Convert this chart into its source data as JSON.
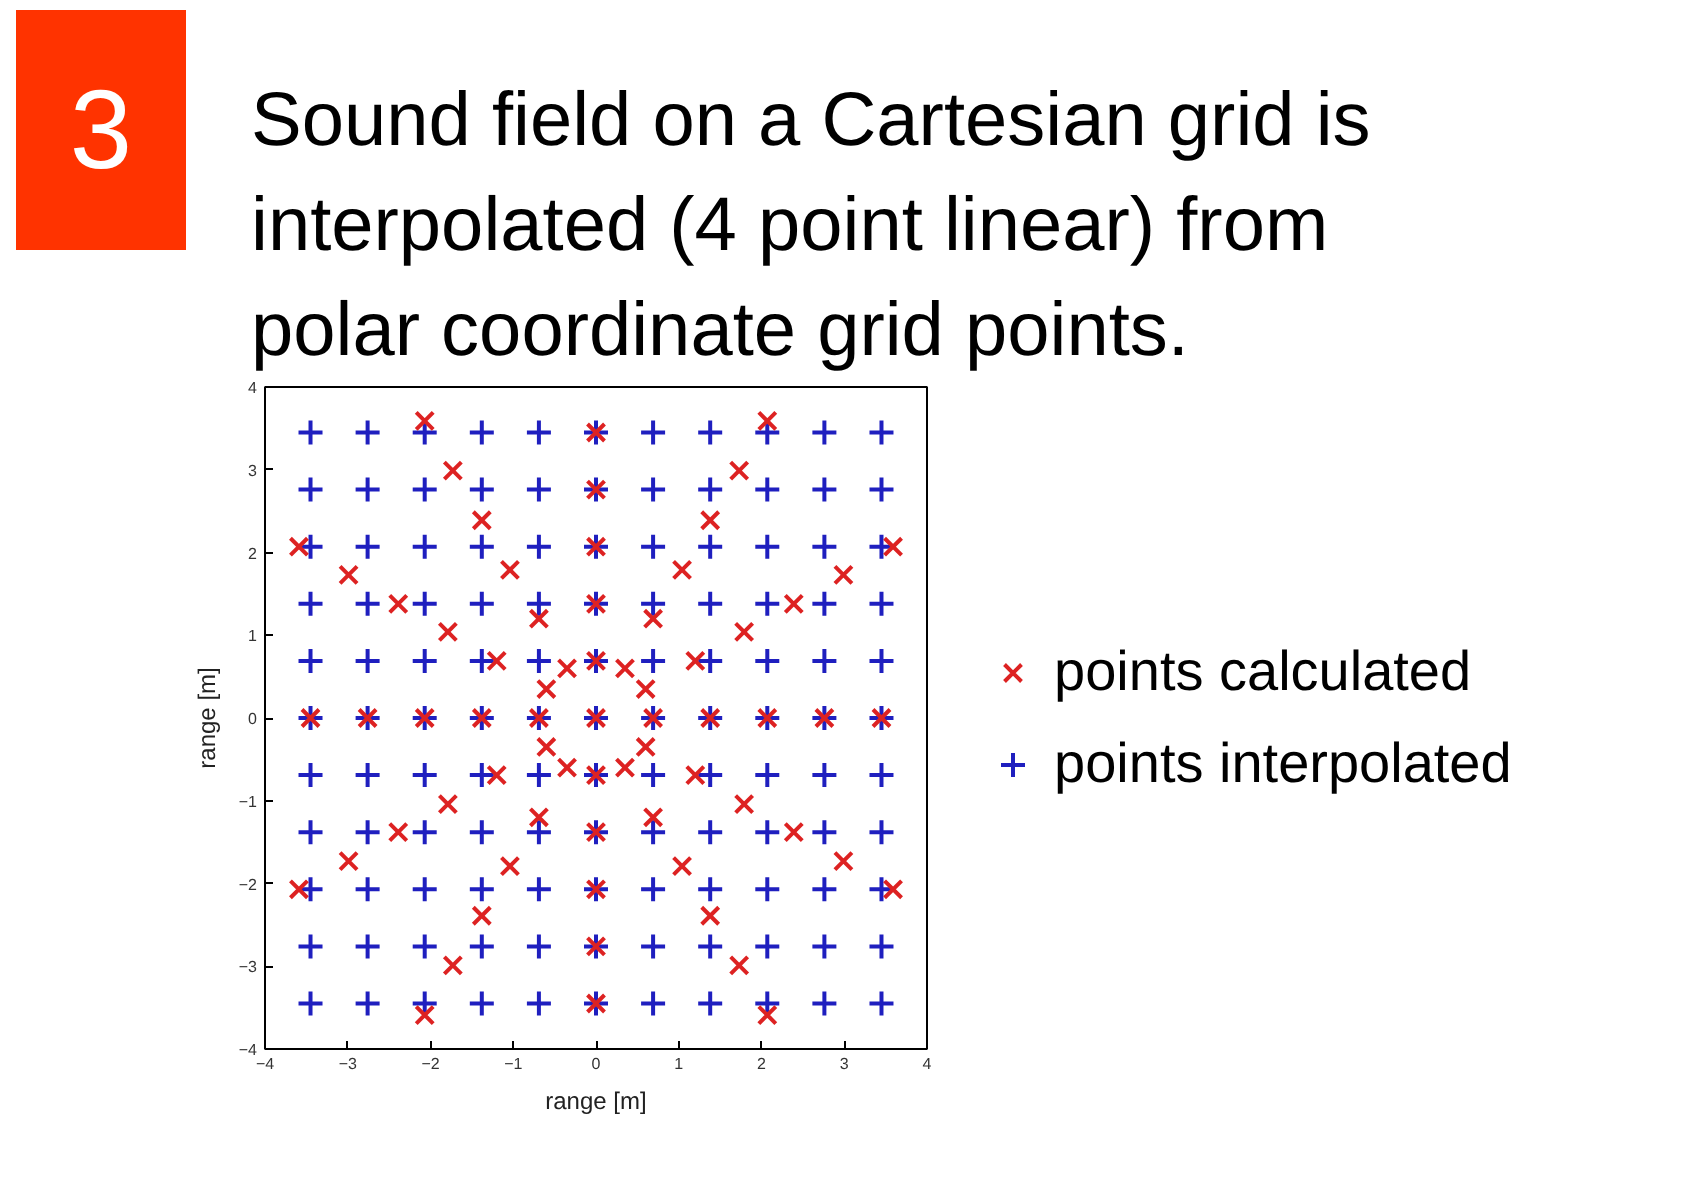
{
  "chart_data": {
    "type": "scatter",
    "title": "Sound field on a Cartesian grid is interpolated (4 point linear) from polar coordinate grid points.",
    "annotations": [
      "3"
    ],
    "xlabel": "range [m]",
    "ylabel": "range [m]",
    "xlim": [
      -4,
      4
    ],
    "ylim": [
      -4,
      4
    ],
    "xticks": [
      -4,
      -3,
      -2,
      -1,
      0,
      1,
      2,
      3,
      4
    ],
    "yticks": [
      -4,
      -3,
      -2,
      -1,
      0,
      1,
      2,
      3,
      4
    ],
    "legend": "right",
    "series": [
      {
        "name": "points calculated",
        "color": "#dd2222",
        "marker": "x",
        "x": [
          0,
          0.69,
          1.38,
          2.07,
          2.76,
          3.45,
          0.6,
          1.2,
          1.79,
          2.39,
          2.99,
          3.59,
          0.35,
          0.69,
          1.04,
          1.38,
          1.73,
          2.07,
          0,
          0,
          0,
          0,
          0,
          -0.35,
          -0.69,
          -1.04,
          -1.38,
          -1.73,
          -2.07,
          -0.6,
          -1.2,
          -1.79,
          -2.39,
          -2.99,
          -3.59,
          -0.69,
          -1.38,
          -2.07,
          -2.76,
          -3.45,
          -0.6,
          -1.2,
          -1.79,
          -2.39,
          -2.99,
          -3.59,
          -0.35,
          -0.69,
          -1.04,
          -1.38,
          -1.73,
          -2.07,
          0,
          0,
          0,
          0,
          0,
          0.35,
          0.69,
          1.04,
          1.38,
          1.73,
          2.07,
          0.6,
          1.2,
          1.79,
          2.39,
          2.99,
          3.59
        ],
        "values": [
          0,
          0,
          0,
          0,
          0,
          0,
          0.35,
          0.69,
          1.04,
          1.38,
          1.73,
          2.07,
          0.6,
          1.2,
          1.79,
          2.39,
          2.99,
          3.59,
          0.69,
          1.38,
          2.07,
          2.76,
          3.45,
          0.6,
          1.2,
          1.79,
          2.39,
          2.99,
          3.59,
          0.35,
          0.69,
          1.04,
          1.38,
          1.73,
          2.07,
          0,
          0,
          0,
          0,
          0,
          -0.35,
          -0.69,
          -1.04,
          -1.38,
          -1.73,
          -2.07,
          -0.6,
          -1.2,
          -1.79,
          -2.39,
          -2.99,
          -3.59,
          -0.69,
          -1.38,
          -2.07,
          -2.76,
          -3.45,
          -0.6,
          -1.2,
          -1.79,
          -2.39,
          -2.99,
          -3.59,
          -0.35,
          -0.69,
          -1.04,
          -1.38,
          -1.73,
          -2.07
        ]
      },
      {
        "name": "points interpolated",
        "color": "#1f1fbf",
        "marker": "cross",
        "x": [
          -3.45,
          -2.76,
          -2.07,
          -1.38,
          -0.69,
          0,
          0.69,
          1.38,
          2.07,
          2.76,
          3.45,
          -3.45,
          -2.76,
          -2.07,
          -1.38,
          -0.69,
          0,
          0.69,
          1.38,
          2.07,
          2.76,
          3.45,
          -3.45,
          -2.76,
          -2.07,
          -1.38,
          -0.69,
          0,
          0.69,
          1.38,
          2.07,
          2.76,
          3.45,
          -3.45,
          -2.76,
          -2.07,
          -1.38,
          -0.69,
          0,
          0.69,
          1.38,
          2.07,
          2.76,
          3.45,
          -3.45,
          -2.76,
          -2.07,
          -1.38,
          -0.69,
          0,
          0.69,
          1.38,
          2.07,
          2.76,
          3.45,
          -3.45,
          -2.76,
          -2.07,
          -1.38,
          -0.69,
          0,
          0.69,
          1.38,
          2.07,
          2.76,
          3.45,
          -3.45,
          -2.76,
          -2.07,
          -1.38,
          -0.69,
          0,
          0.69,
          1.38,
          2.07,
          2.76,
          3.45,
          -3.45,
          -2.76,
          -2.07,
          -1.38,
          -0.69,
          0,
          0.69,
          1.38,
          2.07,
          2.76,
          3.45,
          -3.45,
          -2.76,
          -2.07,
          -1.38,
          -0.69,
          0,
          0.69,
          1.38,
          2.07,
          2.76,
          3.45,
          -3.45,
          -2.76,
          -2.07,
          -1.38,
          -0.69,
          0,
          0.69,
          1.38,
          2.07,
          2.76,
          3.45,
          -3.45,
          -2.76,
          -2.07,
          -1.38,
          -0.69,
          0,
          0.69,
          1.38,
          2.07,
          2.76,
          3.45
        ],
        "values": [
          3.45,
          3.45,
          3.45,
          3.45,
          3.45,
          3.45,
          3.45,
          3.45,
          3.45,
          3.45,
          3.45,
          2.76,
          2.76,
          2.76,
          2.76,
          2.76,
          2.76,
          2.76,
          2.76,
          2.76,
          2.76,
          2.76,
          2.07,
          2.07,
          2.07,
          2.07,
          2.07,
          2.07,
          2.07,
          2.07,
          2.07,
          2.07,
          2.07,
          1.38,
          1.38,
          1.38,
          1.38,
          1.38,
          1.38,
          1.38,
          1.38,
          1.38,
          1.38,
          1.38,
          0.69,
          0.69,
          0.69,
          0.69,
          0.69,
          0.69,
          0.69,
          0.69,
          0.69,
          0.69,
          0.69,
          0,
          0,
          0,
          0,
          0,
          0,
          0,
          0,
          0,
          0,
          0,
          -0.69,
          -0.69,
          -0.69,
          -0.69,
          -0.69,
          -0.69,
          -0.69,
          -0.69,
          -0.69,
          -0.69,
          -0.69,
          -1.38,
          -1.38,
          -1.38,
          -1.38,
          -1.38,
          -1.38,
          -1.38,
          -1.38,
          -1.38,
          -1.38,
          -1.38,
          -2.07,
          -2.07,
          -2.07,
          -2.07,
          -2.07,
          -2.07,
          -2.07,
          -2.07,
          -2.07,
          -2.07,
          -2.07,
          -2.76,
          -2.76,
          -2.76,
          -2.76,
          -2.76,
          -2.76,
          -2.76,
          -2.76,
          -2.76,
          -2.76,
          -2.76,
          -3.45,
          -3.45,
          -3.45,
          -3.45,
          -3.45,
          -3.45,
          -3.45,
          -3.45,
          -3.45,
          -3.45,
          -3.45
        ]
      }
    ]
  }
}
